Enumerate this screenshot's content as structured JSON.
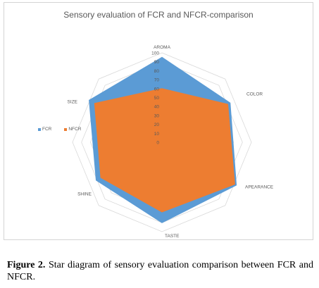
{
  "chart_data": {
    "type": "radar",
    "title": "Sensory evaluation of FCR and NFCR-comparison",
    "categories": [
      "AROMA",
      "COLOR",
      "APEARANCE",
      "TASTE",
      "SHINE",
      "SIZE"
    ],
    "r_ticks": [
      "0",
      "10",
      "20",
      "30",
      "40",
      "50",
      "60",
      "70",
      "80",
      "90",
      "100"
    ],
    "rlim": [
      0,
      100
    ],
    "grid": true,
    "legend_position": "left",
    "series": [
      {
        "name": "FCR",
        "values": [
          95,
          88,
          96,
          90,
          85,
          94
        ],
        "color": "#5b9bd5"
      },
      {
        "name": "NFCR",
        "values": [
          60,
          85,
          94,
          78,
          79,
          87
        ],
        "color": "#ed7d31"
      }
    ]
  },
  "caption": {
    "label": "Figure 2.",
    "text": " Star diagram of sensory evaluation comparison between FCR and NFCR."
  }
}
